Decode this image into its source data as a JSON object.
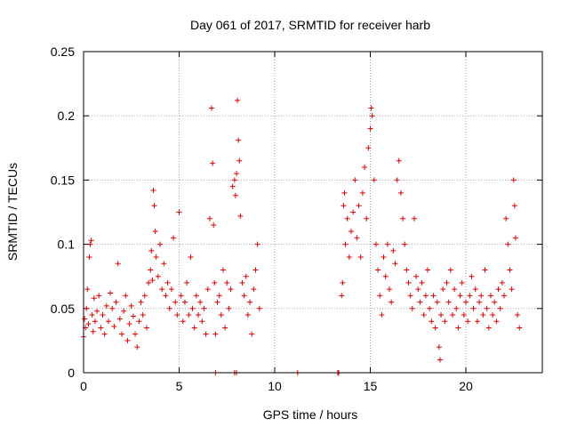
{
  "chart_data": {
    "type": "scatter",
    "title": "Day 061 of 2017, SRMTID for receiver harb",
    "xlabel": "GPS time / hours",
    "ylabel": "SRMTID / TECUs",
    "xlim": [
      0,
      24
    ],
    "ylim": [
      0,
      0.25
    ],
    "x_ticks": [
      0,
      5,
      10,
      15,
      20
    ],
    "x_tick_labels": [
      "0",
      "5",
      "10",
      "15",
      "20"
    ],
    "y_ticks": [
      0,
      0.05,
      0.1,
      0.15,
      0.2,
      0.25
    ],
    "y_tick_labels": [
      "0",
      "0.05",
      "0.1",
      "0.15",
      "0.2",
      "0.25"
    ],
    "grid": true,
    "marker": "+",
    "color": "#e00000",
    "series": [
      {
        "name": "SRMTID",
        "points": [
          [
            0.0,
            0.028
          ],
          [
            0.05,
            0.042
          ],
          [
            0.1,
            0.035
          ],
          [
            0.15,
            0.05
          ],
          [
            0.2,
            0.065
          ],
          [
            0.25,
            0.038
          ],
          [
            0.3,
            0.09
          ],
          [
            0.35,
            0.1
          ],
          [
            0.4,
            0.103
          ],
          [
            0.45,
            0.045
          ],
          [
            0.5,
            0.032
          ],
          [
            0.55,
            0.058
          ],
          [
            0.6,
            0.04
          ],
          [
            0.7,
            0.048
          ],
          [
            0.8,
            0.06
          ],
          [
            0.9,
            0.035
          ],
          [
            1.0,
            0.045
          ],
          [
            1.1,
            0.03
          ],
          [
            1.2,
            0.052
          ],
          [
            1.3,
            0.04
          ],
          [
            1.4,
            0.062
          ],
          [
            1.5,
            0.05
          ],
          [
            1.6,
            0.036
          ],
          [
            1.7,
            0.055
          ],
          [
            1.8,
            0.085
          ],
          [
            1.9,
            0.042
          ],
          [
            2.0,
            0.03
          ],
          [
            2.1,
            0.048
          ],
          [
            2.2,
            0.06
          ],
          [
            2.3,
            0.025
          ],
          [
            2.4,
            0.038
          ],
          [
            2.5,
            0.052
          ],
          [
            2.6,
            0.044
          ],
          [
            2.7,
            0.03
          ],
          [
            2.8,
            0.02
          ],
          [
            2.9,
            0.04
          ],
          [
            3.0,
            0.055
          ],
          [
            3.1,
            0.045
          ],
          [
            3.2,
            0.06
          ],
          [
            3.3,
            0.035
          ],
          [
            3.4,
            0.07
          ],
          [
            3.5,
            0.08
          ],
          [
            3.55,
            0.095
          ],
          [
            3.6,
            0.072
          ],
          [
            3.65,
            0.142
          ],
          [
            3.7,
            0.13
          ],
          [
            3.75,
            0.11
          ],
          [
            3.8,
            0.09
          ],
          [
            3.9,
            0.075
          ],
          [
            4.0,
            0.1
          ],
          [
            4.1,
            0.065
          ],
          [
            4.2,
            0.085
          ],
          [
            4.3,
            0.06
          ],
          [
            4.4,
            0.07
          ],
          [
            4.5,
            0.05
          ],
          [
            4.6,
            0.065
          ],
          [
            4.7,
            0.105
          ],
          [
            4.8,
            0.055
          ],
          [
            4.9,
            0.045
          ],
          [
            5.0,
            0.125
          ],
          [
            5.1,
            0.06
          ],
          [
            5.2,
            0.04
          ],
          [
            5.3,
            0.055
          ],
          [
            5.4,
            0.07
          ],
          [
            5.5,
            0.045
          ],
          [
            5.6,
            0.09
          ],
          [
            5.7,
            0.05
          ],
          [
            5.8,
            0.035
          ],
          [
            5.9,
            0.06
          ],
          [
            6.0,
            0.045
          ],
          [
            6.1,
            0.055
          ],
          [
            6.2,
            0.04
          ],
          [
            6.3,
            0.05
          ],
          [
            6.4,
            0.03
          ],
          [
            6.5,
            0.065
          ],
          [
            6.6,
            0.12
          ],
          [
            6.7,
            0.206
          ],
          [
            6.75,
            0.163
          ],
          [
            6.8,
            0.115
          ],
          [
            6.85,
            0.07
          ],
          [
            6.9,
            0.03
          ],
          [
            7.0,
            0.055
          ],
          [
            7.1,
            0.06
          ],
          [
            7.2,
            0.045
          ],
          [
            7.3,
            0.08
          ],
          [
            7.4,
            0.035
          ],
          [
            7.5,
            0.07
          ],
          [
            7.6,
            0.05
          ],
          [
            7.7,
            0.065
          ],
          [
            7.8,
            0.145
          ],
          [
            7.9,
            0.15
          ],
          [
            7.95,
            0.138
          ],
          [
            8.0,
            0.155
          ],
          [
            8.05,
            0.212
          ],
          [
            8.1,
            0.181
          ],
          [
            8.15,
            0.165
          ],
          [
            8.2,
            0.122
          ],
          [
            8.3,
            0.07
          ],
          [
            8.4,
            0.06
          ],
          [
            8.5,
            0.075
          ],
          [
            8.6,
            0.045
          ],
          [
            8.7,
            0.055
          ],
          [
            8.8,
            0.03
          ],
          [
            8.9,
            0.065
          ],
          [
            9.0,
            0.08
          ],
          [
            9.1,
            0.1
          ],
          [
            9.2,
            0.05
          ],
          [
            13.5,
            0.06
          ],
          [
            13.55,
            0.07
          ],
          [
            13.6,
            0.13
          ],
          [
            13.65,
            0.14
          ],
          [
            13.7,
            0.1
          ],
          [
            13.8,
            0.12
          ],
          [
            13.9,
            0.09
          ],
          [
            14.0,
            0.11
          ],
          [
            14.1,
            0.125
          ],
          [
            14.2,
            0.15
          ],
          [
            14.3,
            0.105
          ],
          [
            14.4,
            0.13
          ],
          [
            14.5,
            0.09
          ],
          [
            14.6,
            0.14
          ],
          [
            14.7,
            0.16
          ],
          [
            14.8,
            0.12
          ],
          [
            14.9,
            0.175
          ],
          [
            15.0,
            0.19
          ],
          [
            15.05,
            0.206
          ],
          [
            15.1,
            0.2
          ],
          [
            15.2,
            0.15
          ],
          [
            15.3,
            0.1
          ],
          [
            15.4,
            0.08
          ],
          [
            15.5,
            0.06
          ],
          [
            15.6,
            0.045
          ],
          [
            15.7,
            0.09
          ],
          [
            15.8,
            0.075
          ],
          [
            15.9,
            0.1
          ],
          [
            16.0,
            0.065
          ],
          [
            16.1,
            0.055
          ],
          [
            16.2,
            0.095
          ],
          [
            16.3,
            0.085
          ],
          [
            16.4,
            0.15
          ],
          [
            16.5,
            0.165
          ],
          [
            16.6,
            0.14
          ],
          [
            16.7,
            0.12
          ],
          [
            16.8,
            0.1
          ],
          [
            16.9,
            0.08
          ],
          [
            17.0,
            0.07
          ],
          [
            17.1,
            0.06
          ],
          [
            17.2,
            0.05
          ],
          [
            17.3,
            0.12
          ],
          [
            17.4,
            0.075
          ],
          [
            17.5,
            0.065
          ],
          [
            17.6,
            0.055
          ],
          [
            17.7,
            0.07
          ],
          [
            17.8,
            0.045
          ],
          [
            17.9,
            0.06
          ],
          [
            18.0,
            0.08
          ],
          [
            18.1,
            0.05
          ],
          [
            18.2,
            0.04
          ],
          [
            18.3,
            0.06
          ],
          [
            18.4,
            0.035
          ],
          [
            18.5,
            0.055
          ],
          [
            18.6,
            0.02
          ],
          [
            18.65,
            0.01
          ],
          [
            18.7,
            0.045
          ],
          [
            18.8,
            0.065
          ],
          [
            18.9,
            0.04
          ],
          [
            19.0,
            0.07
          ],
          [
            19.1,
            0.055
          ],
          [
            19.2,
            0.08
          ],
          [
            19.3,
            0.045
          ],
          [
            19.4,
            0.065
          ],
          [
            19.5,
            0.05
          ],
          [
            19.6,
            0.035
          ],
          [
            19.7,
            0.06
          ],
          [
            19.8,
            0.07
          ],
          [
            19.9,
            0.045
          ],
          [
            20.0,
            0.055
          ],
          [
            20.1,
            0.04
          ],
          [
            20.2,
            0.06
          ],
          [
            20.3,
            0.075
          ],
          [
            20.4,
            0.05
          ],
          [
            20.5,
            0.065
          ],
          [
            20.6,
            0.04
          ],
          [
            20.7,
            0.055
          ],
          [
            20.8,
            0.06
          ],
          [
            20.9,
            0.045
          ],
          [
            21.0,
            0.08
          ],
          [
            21.1,
            0.05
          ],
          [
            21.2,
            0.035
          ],
          [
            21.3,
            0.06
          ],
          [
            21.4,
            0.045
          ],
          [
            21.5,
            0.055
          ],
          [
            21.6,
            0.04
          ],
          [
            21.7,
            0.065
          ],
          [
            21.8,
            0.05
          ],
          [
            21.9,
            0.07
          ],
          [
            22.0,
            0.06
          ],
          [
            22.1,
            0.12
          ],
          [
            22.2,
            0.1
          ],
          [
            22.3,
            0.08
          ],
          [
            22.4,
            0.065
          ],
          [
            22.5,
            0.15
          ],
          [
            22.55,
            0.13
          ],
          [
            22.6,
            0.105
          ],
          [
            22.7,
            0.045
          ],
          [
            22.8,
            0.035
          ],
          [
            6.9,
            0.0
          ],
          [
            7.9,
            0.0
          ],
          [
            8.0,
            0.0
          ],
          [
            11.2,
            0.0
          ],
          [
            13.3,
            0.0
          ],
          [
            13.35,
            0.0
          ]
        ]
      }
    ]
  }
}
